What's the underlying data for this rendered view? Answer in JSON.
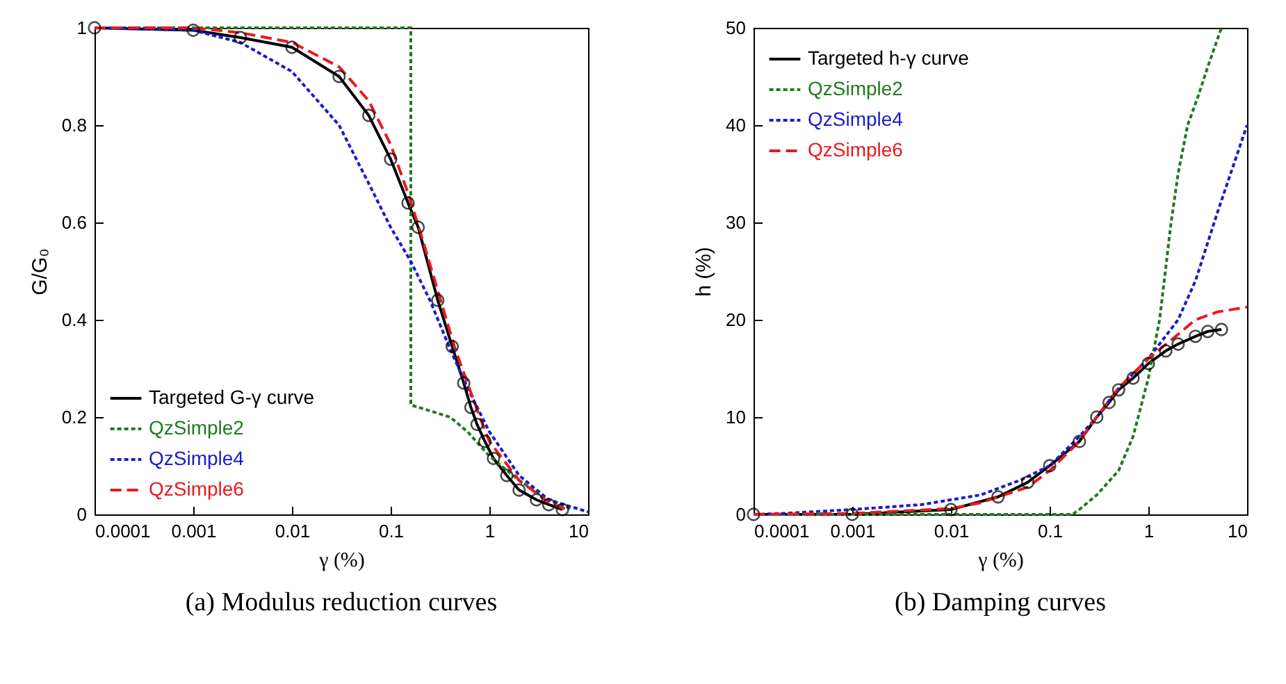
{
  "chart_data": [
    {
      "type": "line",
      "title": "(a)  Modulus reduction curves",
      "xlabel": "γ (%)",
      "ylabel": "G/G₀",
      "log": "x",
      "grid": false,
      "legend": "bottom left",
      "xlim": [
        0.0001,
        10
      ],
      "xticks": [
        0.0001,
        0.001,
        0.01,
        0.1,
        1,
        10
      ],
      "ylim": [
        0,
        1
      ],
      "yticks": [
        0,
        0.2,
        0.4,
        0.6,
        0.8,
        1
      ],
      "series": [
        {
          "name": "Targeted G-γ curve",
          "color": "#000000",
          "line_style": "solid",
          "marker": "circle",
          "x": [
            0.0001,
            0.001,
            0.003,
            0.01,
            0.03,
            0.06,
            0.1,
            0.15,
            0.19,
            0.3,
            0.42,
            0.55,
            0.65,
            0.75,
            0.9,
            1.1,
            1.5,
            2,
            3,
            4,
            5.5
          ],
          "values": [
            1,
            0.995,
            0.98,
            0.96,
            0.9,
            0.82,
            0.73,
            0.64,
            0.59,
            0.44,
            0.345,
            0.27,
            0.22,
            0.185,
            0.15,
            0.115,
            0.08,
            0.05,
            0.03,
            0.02,
            0.01
          ]
        },
        {
          "name": "QzSimple2",
          "color": "#1e7b1e",
          "line_style": "dotted",
          "x": [
            0.0001,
            0.16,
            0.16,
            0.4,
            0.6,
            1,
            2,
            4,
            7
          ],
          "values": [
            1,
            1,
            0.225,
            0.2,
            0.17,
            0.12,
            0.07,
            0.03,
            0.01
          ]
        },
        {
          "name": "QzSimple4",
          "color": "#1a1acc",
          "line_style": "dotted",
          "x": [
            0.0001,
            0.001,
            0.003,
            0.01,
            0.03,
            0.06,
            0.1,
            0.16,
            0.25,
            0.4,
            0.6,
            1,
            2,
            4,
            10
          ],
          "values": [
            1,
            0.995,
            0.97,
            0.91,
            0.8,
            0.68,
            0.59,
            0.52,
            0.44,
            0.34,
            0.26,
            0.17,
            0.08,
            0.03,
            0.005
          ]
        },
        {
          "name": "QzSimple6",
          "color": "#e8191e",
          "line_style": "dashed",
          "x": [
            0.0001,
            0.001,
            0.003,
            0.01,
            0.03,
            0.06,
            0.1,
            0.15,
            0.2,
            0.3,
            0.45,
            0.6,
            0.8,
            1,
            2,
            4,
            6
          ],
          "values": [
            1,
            1,
            0.99,
            0.97,
            0.92,
            0.85,
            0.76,
            0.66,
            0.58,
            0.46,
            0.34,
            0.27,
            0.2,
            0.15,
            0.07,
            0.025,
            0.01
          ]
        }
      ]
    },
    {
      "type": "line",
      "title": "(b)  Damping curves",
      "xlabel": "γ (%)",
      "ylabel": "h (%)",
      "log": "x",
      "grid": false,
      "legend": "top left",
      "xlim": [
        0.0001,
        10
      ],
      "xticks": [
        0.0001,
        0.001,
        0.01,
        0.1,
        1,
        10
      ],
      "ylim": [
        0,
        50
      ],
      "yticks": [
        0,
        10,
        20,
        30,
        40,
        50
      ],
      "series": [
        {
          "name": "Targeted h-γ curve",
          "color": "#000000",
          "line_style": "solid",
          "marker": "circle",
          "x": [
            0.0001,
            0.001,
            0.01,
            0.03,
            0.06,
            0.1,
            0.2,
            0.3,
            0.4,
            0.5,
            0.7,
            1,
            1.5,
            2,
            3,
            4,
            5.5
          ],
          "values": [
            0,
            0,
            0.5,
            1.8,
            3.3,
            5,
            7.5,
            10,
            11.5,
            12.8,
            14,
            15.5,
            16.8,
            17.5,
            18.3,
            18.8,
            19
          ]
        },
        {
          "name": "QzSimple2",
          "color": "#1e7b1e",
          "line_style": "dotted",
          "x": [
            0.0001,
            0.17,
            0.2,
            0.3,
            0.5,
            0.7,
            1,
            1.3,
            1.7,
            2,
            2.5,
            3.2,
            4,
            5.5
          ],
          "values": [
            0,
            0,
            0.5,
            2,
            4.5,
            8,
            14,
            20,
            30,
            35,
            40,
            43,
            46,
            50
          ]
        },
        {
          "name": "QzSimple4",
          "color": "#1a1acc",
          "line_style": "dotted",
          "x": [
            0.0001,
            0.0002,
            0.001,
            0.005,
            0.02,
            0.05,
            0.1,
            0.2,
            0.3,
            0.5,
            1,
            2,
            3,
            5,
            10
          ],
          "values": [
            0,
            0.1,
            0.5,
            1,
            2,
            3.5,
            5,
            8,
            10,
            13,
            16,
            20,
            24,
            31,
            40
          ]
        },
        {
          "name": "QzSimple6",
          "color": "#e8191e",
          "line_style": "dashed",
          "x": [
            0.0001,
            0.001,
            0.01,
            0.02,
            0.06,
            0.1,
            0.2,
            0.3,
            0.5,
            1,
            2,
            3,
            5,
            10
          ],
          "values": [
            0,
            0.1,
            0.6,
            1.2,
            2.8,
            4.5,
            7.5,
            10,
            13,
            16,
            18.5,
            20,
            20.8,
            21.3
          ]
        }
      ]
    }
  ]
}
